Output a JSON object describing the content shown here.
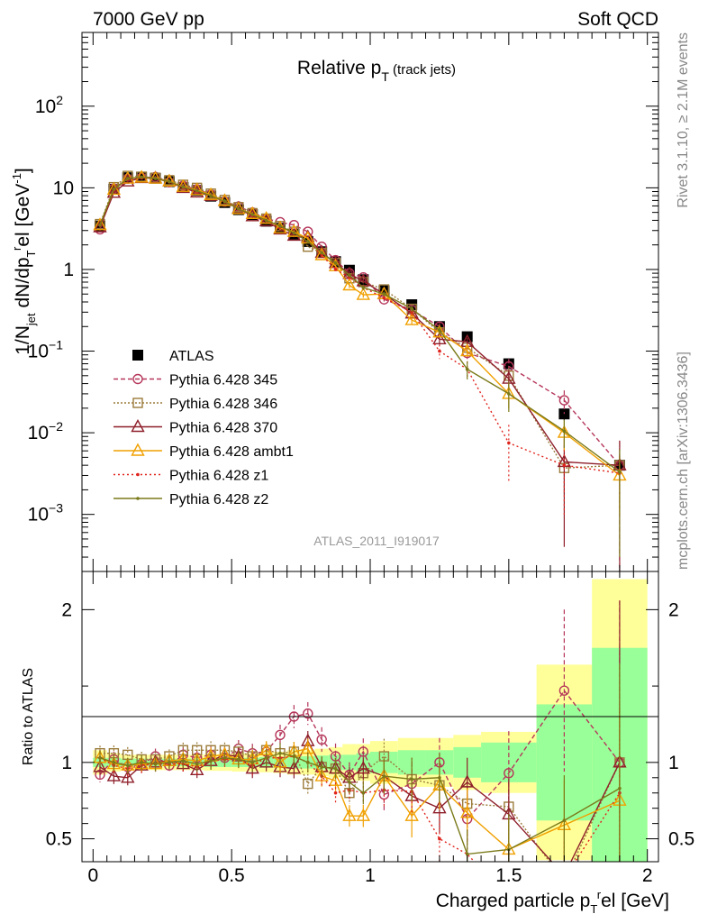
{
  "header": {
    "left": "7000 GeV pp",
    "right": "Soft QCD",
    "rivet": "Rivet 3.1.10, ≥ 2.1M events",
    "mcplots": "mcplots.cern.ch [arXiv:1306.3436]",
    "analysis": "ATLAS_2011_I919017"
  },
  "chart_data": [
    {
      "type": "line",
      "title": "Relative p_T (track jets)",
      "ylabel": "1/N_jet dN/dp_T^rel [GeV^-1]",
      "yscale": "log",
      "ylim": [
        0.0002,
        800
      ],
      "xlim": [
        -0.04,
        2.04
      ],
      "ytick_labels": [
        "10^-3",
        "10^-2",
        "10^-1",
        "1",
        "10",
        "10^2"
      ],
      "legend_placement": "center-left",
      "x": [
        0.025,
        0.075,
        0.125,
        0.175,
        0.225,
        0.275,
        0.325,
        0.375,
        0.425,
        0.475,
        0.525,
        0.575,
        0.625,
        0.675,
        0.725,
        0.775,
        0.825,
        0.875,
        0.925,
        0.975,
        1.05,
        1.15,
        1.25,
        1.35,
        1.5,
        1.7,
        1.9
      ],
      "series": [
        {
          "name": "ATLAS",
          "color": "#000000",
          "marker": "filled-square",
          "values": [
            3.4,
            9.6,
            13.3,
            13.5,
            13.1,
            11.9,
            10.1,
            9.3,
            7.9,
            6.6,
            5.4,
            4.7,
            3.9,
            3.2,
            2.7,
            2.2,
            1.65,
            1.25,
            0.98,
            0.75,
            0.55,
            0.37,
            0.2,
            0.15,
            0.07,
            0.017,
            0.004
          ],
          "errors": [
            0.2,
            0.4,
            0.5,
            0.5,
            0.5,
            0.4,
            0.35,
            0.3,
            0.3,
            0.25,
            0.2,
            0.2,
            0.15,
            0.15,
            0.12,
            0.1,
            0.08,
            0.06,
            0.05,
            0.04,
            0.03,
            0.02,
            0.015,
            0.015,
            0.01,
            0.003,
            0.0015
          ]
        },
        {
          "name": "Pythia 6.428 345",
          "color": "#b5365a",
          "marker": "open-circle",
          "dash": "5,3",
          "values": [
            3.1,
            9.8,
            12.9,
            13.3,
            13.6,
            11.7,
            10.6,
            9.6,
            8.3,
            6.8,
            5.9,
            5.0,
            4.2,
            3.8,
            3.5,
            2.9,
            1.9,
            1.3,
            0.9,
            0.8,
            0.43,
            0.32,
            0.2,
            0.095,
            0.065,
            0.025,
            0.004
          ],
          "errors": [
            0.1,
            0.3,
            0.4,
            0.4,
            0.4,
            0.3,
            0.3,
            0.3,
            0.3,
            0.2,
            0.2,
            0.2,
            0.15,
            0.15,
            0.15,
            0.12,
            0.1,
            0.08,
            0.06,
            0.05,
            0.03,
            0.03,
            0.02,
            0.015,
            0.015,
            0.008,
            0.004
          ]
        },
        {
          "name": "Pythia 6.428 346",
          "color": "#9b7b3a",
          "marker": "open-square",
          "dash": "2,2",
          "values": [
            3.6,
            10.2,
            14.0,
            13.7,
            13.3,
            12.4,
            10.9,
            10.0,
            8.5,
            7.1,
            5.8,
            4.9,
            4.2,
            3.4,
            2.9,
            1.9,
            1.6,
            1.2,
            0.78,
            0.7,
            0.57,
            0.33,
            0.17,
            0.11,
            0.05,
            0.0037,
            0.004
          ],
          "errors": [
            0.1,
            0.3,
            0.4,
            0.4,
            0.4,
            0.3,
            0.3,
            0.3,
            0.3,
            0.2,
            0.2,
            0.2,
            0.15,
            0.15,
            0.12,
            0.1,
            0.08,
            0.06,
            0.05,
            0.04,
            0.03,
            0.03,
            0.02,
            0.015,
            0.012,
            0.002,
            0.003
          ]
        },
        {
          "name": "Pythia 6.428 370",
          "color": "#8e1f2a",
          "marker": "open-triangle",
          "dash": "",
          "values": [
            3.3,
            8.7,
            12.0,
            13.2,
            13.1,
            12.0,
            10.0,
            8.8,
            8.0,
            6.9,
            5.6,
            4.5,
            3.9,
            3.1,
            2.6,
            2.5,
            1.6,
            1.2,
            0.88,
            0.72,
            0.5,
            0.29,
            0.14,
            0.13,
            0.046,
            0.0044,
            0.004
          ],
          "errors": [
            0.1,
            0.3,
            0.4,
            0.4,
            0.4,
            0.3,
            0.3,
            0.3,
            0.3,
            0.2,
            0.2,
            0.2,
            0.15,
            0.15,
            0.12,
            0.1,
            0.08,
            0.06,
            0.05,
            0.04,
            0.03,
            0.03,
            0.02,
            0.015,
            0.012,
            0.004,
            0.004
          ]
        },
        {
          "name": "Pythia 6.428 ambt1",
          "color": "#f0a000",
          "marker": "open-triangle",
          "dash": "",
          "values": [
            3.5,
            9.5,
            13.0,
            13.4,
            13.0,
            12.0,
            10.3,
            9.4,
            8.2,
            6.9,
            5.5,
            4.8,
            4.2,
            3.2,
            2.9,
            2.4,
            1.5,
            1.1,
            0.64,
            0.49,
            0.5,
            0.24,
            0.17,
            0.1,
            0.03,
            0.01,
            0.003
          ],
          "errors": [
            0.1,
            0.3,
            0.4,
            0.4,
            0.4,
            0.3,
            0.3,
            0.3,
            0.3,
            0.2,
            0.2,
            0.2,
            0.15,
            0.15,
            0.12,
            0.1,
            0.08,
            0.06,
            0.05,
            0.04,
            0.03,
            0.03,
            0.02,
            0.015,
            0.01,
            0.004,
            0.002
          ]
        },
        {
          "name": "Pythia 6.428 z1",
          "color": "#e0231c",
          "marker": "dot",
          "dash": "2,3",
          "values": [
            3.5,
            9.4,
            12.8,
            13.2,
            13.0,
            11.8,
            10.0,
            9.0,
            8.0,
            6.7,
            5.5,
            4.6,
            4.0,
            3.3,
            2.8,
            2.2,
            1.5,
            1.0,
            0.8,
            0.6,
            0.45,
            0.3,
            0.1,
            0.06,
            0.0075,
            0.004,
            0.0032
          ],
          "errors": [
            0.1,
            0.3,
            0.4,
            0.4,
            0.4,
            0.3,
            0.3,
            0.3,
            0.3,
            0.2,
            0.2,
            0.2,
            0.15,
            0.15,
            0.12,
            0.1,
            0.08,
            0.06,
            0.05,
            0.04,
            0.03,
            0.03,
            0.02,
            0.015,
            0.005,
            0.003,
            0.002
          ]
        },
        {
          "name": "Pythia 6.428 z2",
          "color": "#7a7a1a",
          "marker": "dot",
          "dash": "",
          "values": [
            3.5,
            9.6,
            13.0,
            13.5,
            13.0,
            11.9,
            10.2,
            9.2,
            8.0,
            6.8,
            5.5,
            4.7,
            4.0,
            3.4,
            2.8,
            2.2,
            1.6,
            1.2,
            0.85,
            0.6,
            0.5,
            0.33,
            0.18,
            0.06,
            0.03,
            0.0105,
            0.0033
          ],
          "errors": [
            0.1,
            0.3,
            0.4,
            0.4,
            0.4,
            0.3,
            0.3,
            0.3,
            0.3,
            0.2,
            0.2,
            0.2,
            0.15,
            0.15,
            0.12,
            0.1,
            0.08,
            0.06,
            0.05,
            0.04,
            0.03,
            0.03,
            0.02,
            0.015,
            0.012,
            0.004,
            0.003
          ]
        }
      ]
    },
    {
      "type": "line",
      "title": "",
      "xlabel": "Charged particle p_T^rel [GeV]",
      "ylabel": "Ratio to ATLAS",
      "ylim": [
        0.35,
        2.25
      ],
      "xlim": [
        -0.04,
        2.04
      ],
      "xtick_labels": [
        "0",
        "0.5",
        "1",
        "1.5",
        "2"
      ],
      "ytick_labels": [
        "0.5",
        "1",
        "2"
      ],
      "reference_line": 1,
      "bands": {
        "x_edges": [
          0.0,
          0.05,
          0.1,
          0.15,
          0.2,
          0.25,
          0.3,
          0.35,
          0.4,
          0.45,
          0.5,
          0.55,
          0.6,
          0.65,
          0.7,
          0.75,
          0.8,
          0.85,
          0.9,
          0.95,
          1.0,
          1.1,
          1.2,
          1.3,
          1.4,
          1.6,
          1.8,
          2.0
        ],
        "stat_half_width": [
          0.03,
          0.03,
          0.025,
          0.025,
          0.025,
          0.025,
          0.025,
          0.025,
          0.03,
          0.03,
          0.03,
          0.03,
          0.035,
          0.035,
          0.04,
          0.04,
          0.045,
          0.05,
          0.05,
          0.06,
          0.07,
          0.08,
          0.08,
          0.1,
          0.13,
          0.38,
          0.75
        ],
        "total_half_width": [
          0.08,
          0.06,
          0.05,
          0.05,
          0.05,
          0.05,
          0.05,
          0.05,
          0.055,
          0.055,
          0.06,
          0.06,
          0.065,
          0.07,
          0.08,
          0.08,
          0.09,
          0.1,
          0.12,
          0.12,
          0.14,
          0.16,
          0.16,
          0.18,
          0.2,
          0.64,
          1.2
        ]
      },
      "ratios": {
        "Pythia 6.428 345": [
          0.92,
          1.02,
          0.97,
          0.99,
          1.04,
          0.98,
          1.05,
          1.03,
          1.05,
          1.03,
          1.09,
          1.06,
          1.07,
          1.18,
          1.3,
          1.32,
          1.15,
          1.04,
          0.92,
          1.07,
          0.79,
          0.86,
          1.0,
          0.63,
          0.93,
          1.47,
          1.0
        ],
        "Pythia 6.428 346": [
          1.06,
          1.06,
          1.05,
          1.02,
          1.02,
          1.04,
          1.08,
          1.08,
          1.08,
          1.08,
          1.07,
          1.04,
          1.08,
          1.06,
          1.07,
          0.86,
          0.97,
          0.96,
          0.8,
          0.93,
          1.04,
          0.89,
          0.85,
          0.73,
          0.71,
          0.22,
          1.0
        ],
        "Pythia 6.428 370": [
          0.97,
          0.91,
          0.9,
          0.98,
          1.0,
          1.01,
          0.99,
          0.95,
          1.01,
          1.05,
          1.04,
          0.96,
          1.0,
          0.97,
          0.96,
          1.14,
          0.97,
          0.96,
          0.9,
          0.96,
          0.91,
          0.78,
          0.7,
          0.87,
          0.66,
          0.26,
          1.0
        ],
        "Pythia 6.428 ambt1": [
          1.03,
          0.99,
          0.98,
          0.99,
          0.99,
          1.01,
          1.02,
          1.01,
          1.04,
          1.05,
          1.02,
          1.02,
          1.08,
          1.0,
          1.07,
          1.09,
          0.91,
          0.88,
          0.65,
          0.65,
          0.91,
          0.65,
          0.85,
          0.67,
          0.43,
          0.59,
          0.75
        ],
        "Pythia 6.428 z1": [
          1.03,
          0.98,
          0.96,
          0.98,
          0.99,
          0.99,
          0.99,
          0.97,
          1.01,
          1.02,
          1.02,
          0.98,
          1.03,
          1.03,
          1.04,
          1.0,
          0.91,
          0.8,
          0.82,
          0.8,
          0.82,
          0.81,
          0.5,
          0.4,
          0.11,
          0.24,
          0.8
        ],
        "Pythia 6.428 z2": [
          1.03,
          1.0,
          0.98,
          1.0,
          0.99,
          1.0,
          1.01,
          0.99,
          1.01,
          1.03,
          1.02,
          1.0,
          1.03,
          1.06,
          1.04,
          1.0,
          0.97,
          0.96,
          0.87,
          0.8,
          0.91,
          0.89,
          0.9,
          0.4,
          0.43,
          0.62,
          0.83
        ]
      }
    }
  ]
}
